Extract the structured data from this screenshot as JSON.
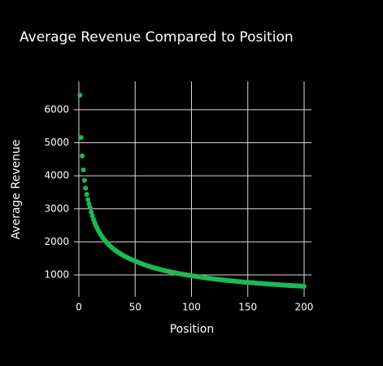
{
  "chart_data": {
    "type": "scatter",
    "title": "Average Revenue Compared to Position",
    "x_label": "Position",
    "y_label": "Average Revenue",
    "color": "#1db954",
    "grid": true,
    "xlim": [
      -4.3,
      206.5
    ],
    "xticks": [
      0,
      50,
      100,
      150,
      200
    ],
    "ylim": [
      335,
      6860
    ],
    "yticks": [
      1000,
      2000,
      3000,
      4000,
      5000,
      6000
    ],
    "x": [
      1,
      2,
      3,
      4,
      5,
      6,
      7,
      8,
      9,
      10,
      11,
      12,
      13,
      14,
      15,
      16,
      17,
      18,
      19,
      20,
      21,
      22,
      23,
      24,
      25,
      26,
      27,
      28,
      29,
      30,
      31,
      32,
      33,
      34,
      35,
      36,
      37,
      38,
      39,
      40,
      41,
      42,
      43,
      44,
      45,
      46,
      47,
      48,
      49,
      50,
      51,
      52,
      53,
      54,
      55,
      56,
      57,
      58,
      59,
      60,
      61,
      62,
      63,
      64,
      65,
      66,
      67,
      68,
      69,
      70,
      71,
      72,
      73,
      74,
      75,
      76,
      77,
      78,
      79,
      80,
      81,
      82,
      83,
      84,
      85,
      86,
      87,
      88,
      89,
      90,
      91,
      92,
      93,
      94,
      95,
      96,
      97,
      98,
      99,
      100,
      101,
      102,
      103,
      104,
      105,
      106,
      107,
      108,
      109,
      110,
      111,
      112,
      113,
      114,
      115,
      116,
      117,
      118,
      119,
      120,
      121,
      122,
      123,
      124,
      125,
      126,
      127,
      128,
      129,
      130,
      131,
      132,
      133,
      134,
      135,
      136,
      137,
      138,
      139,
      140,
      141,
      142,
      143,
      144,
      145,
      146,
      147,
      148,
      149,
      150,
      151,
      152,
      153,
      154,
      155,
      156,
      157,
      158,
      159,
      160,
      161,
      162,
      163,
      164,
      165,
      166,
      167,
      168,
      169,
      170,
      171,
      172,
      173,
      174,
      175,
      176,
      177,
      178,
      179,
      180,
      181,
      182,
      183,
      184,
      185,
      186,
      187,
      188,
      189,
      190,
      191,
      192,
      193,
      194,
      195,
      196,
      197,
      198,
      199,
      200
    ],
    "values": [
      6440,
      5160,
      4600,
      4180,
      3860,
      3625,
      3437,
      3282,
      3152,
      3040,
      2906,
      2789,
      2685,
      2593,
      2510,
      2434,
      2365,
      2302,
      2244,
      2190,
      2140,
      2094,
      2050,
      2009,
      1971,
      1935,
      1900,
      1868,
      1837,
      1808,
      1780,
      1753,
      1728,
      1704,
      1681,
      1659,
      1637,
      1617,
      1597,
      1578,
      1560,
      1542,
      1525,
      1508,
      1493,
      1477,
      1462,
      1448,
      1434,
      1420,
      1405,
      1390,
      1376,
      1362,
      1349,
      1336,
      1323,
      1311,
      1299,
      1287,
      1275,
      1264,
      1253,
      1243,
      1232,
      1222,
      1212,
      1203,
      1193,
      1184,
      1175,
      1166,
      1158,
      1149,
      1141,
      1133,
      1125,
      1117,
      1109,
      1102,
      1094,
      1087,
      1080,
      1073,
      1066,
      1060,
      1053,
      1046,
      1040,
      1034,
      1028,
      1022,
      1016,
      1010,
      1004,
      998,
      993,
      987,
      982,
      976,
      970,
      965,
      960,
      954,
      949,
      944,
      939,
      934,
      929,
      924,
      919,
      914,
      910,
      905,
      901,
      896,
      892,
      887,
      883,
      879,
      875,
      871,
      866,
      862,
      859,
      855,
      851,
      847,
      843,
      839,
      836,
      832,
      828,
      825,
      821,
      818,
      814,
      811,
      808,
      804,
      801,
      798,
      795,
      791,
      788,
      785,
      782,
      779,
      776,
      773,
      770,
      767,
      764,
      762,
      759,
      756,
      753,
      750,
      748,
      745,
      742,
      740,
      737,
      735,
      732,
      729,
      727,
      724,
      722,
      720,
      717,
      715,
      712,
      710,
      708,
      705,
      703,
      701,
      698,
      696,
      694,
      692,
      690,
      687,
      685,
      683,
      681,
      679,
      677,
      675,
      673,
      671,
      669,
      667,
      665,
      663,
      661,
      659,
      657,
      655
    ]
  }
}
